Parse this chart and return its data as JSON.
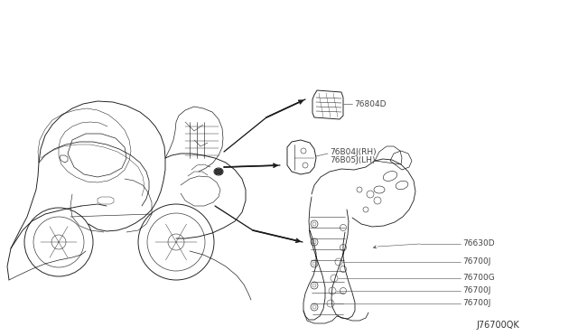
{
  "background_color": "#ffffff",
  "line_color": "#1a1a1a",
  "text_color": "#444444",
  "diagram_code": "J76700QK",
  "font_size": 6.5,
  "lw": 0.6,
  "arrow_lw": 1.0,
  "label_76804D": "76804D",
  "label_76B04J": "76B04J(RH)",
  "label_76B05J": "76B05J(LH)",
  "label_76630D": "76630D",
  "label_76700J_1": "76700J",
  "label_76700G": "76700G",
  "label_76700J_2": "76700J",
  "label_76700J_3": "76700J"
}
